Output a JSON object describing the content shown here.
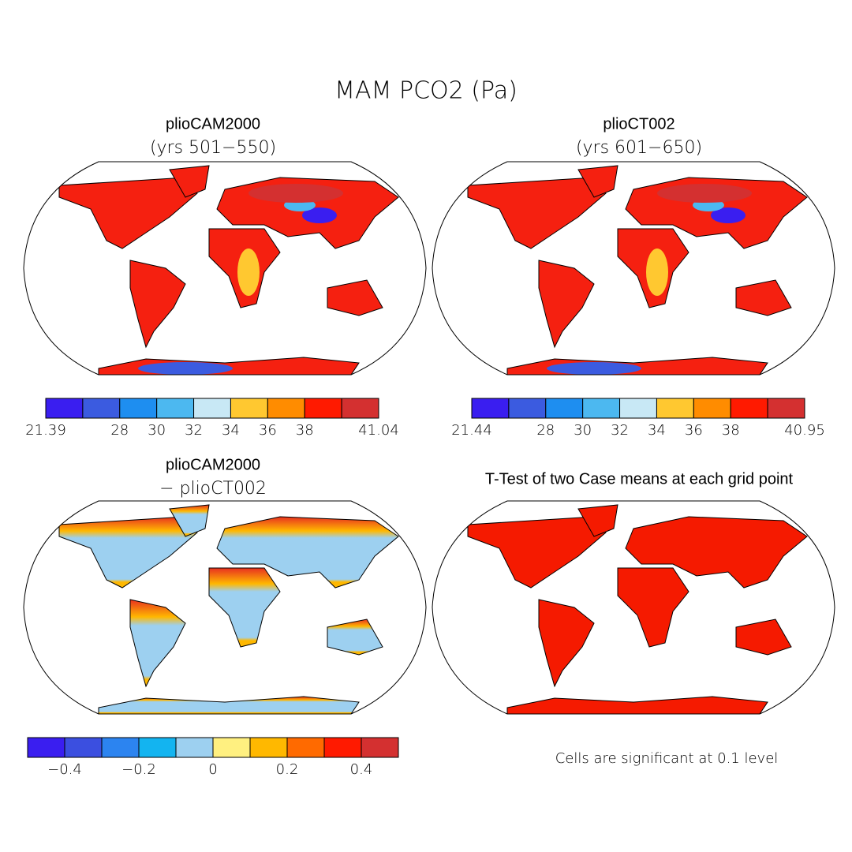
{
  "title": "MAM PCO2 (Pa)",
  "panels": [
    {
      "title": "plioCAM2000",
      "subtitle": "(yrs 501−550)",
      "colorbar": {
        "colors": [
          "#3a1ef0",
          "#3b5be0",
          "#1e8ef0",
          "#4cb8f0",
          "#c8e8f5",
          "#ffc830",
          "#ff8c00",
          "#ff1a00",
          "#d43030"
        ],
        "bounds": [
          21.39,
          null,
          28,
          30,
          32,
          34,
          36,
          38,
          null,
          41.04
        ]
      }
    },
    {
      "title": "plioCT002",
      "subtitle": "(yrs 601−650)",
      "colorbar": {
        "colors": [
          "#3a1ef0",
          "#3b5be0",
          "#1e8ef0",
          "#4cb8f0",
          "#c8e8f5",
          "#ffc830",
          "#ff8c00",
          "#ff1a00",
          "#d43030"
        ],
        "bounds": [
          21.44,
          null,
          28,
          30,
          32,
          34,
          36,
          38,
          null,
          40.95
        ]
      }
    },
    {
      "title": "plioCAM2000",
      "subtitle": "− plioCT002",
      "colorbar": {
        "colors": [
          "#3a1ef0",
          "#3b4fe0",
          "#2c84f0",
          "#13b4f0",
          "#9dd0f0",
          "#fff080",
          "#ffb800",
          "#ff6a00",
          "#ff1a00",
          "#d43030"
        ],
        "bounds": [
          null,
          {
            "value": -0.4,
            "label": "−0.4"
          },
          null,
          {
            "value": -0.2,
            "label": "−0.2"
          },
          null,
          0,
          null,
          0.2,
          null,
          0.4,
          null
        ]
      }
    },
    {
      "title": "T-Test of two Case means at each grid point",
      "note": "Cells are significant at 0.1 level"
    }
  ]
}
